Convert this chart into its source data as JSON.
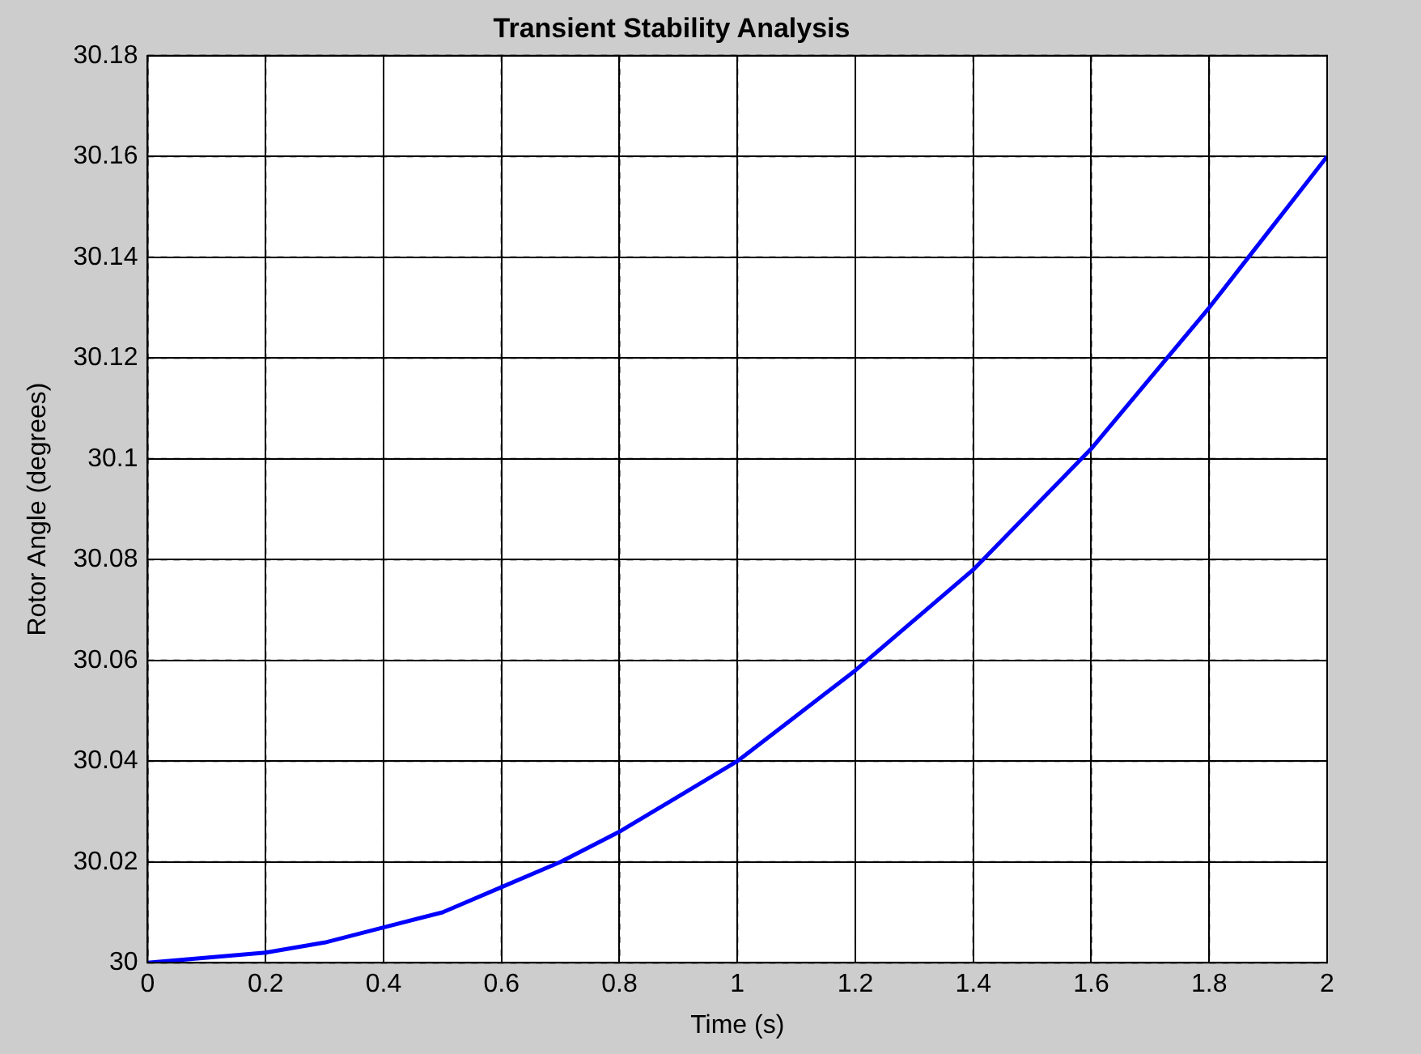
{
  "chart_data": {
    "type": "line",
    "title": "Transient Stability Analysis",
    "xlabel": "Time (s)",
    "ylabel": "Rotor Angle (degrees)",
    "x": [
      0,
      0.1,
      0.2,
      0.3,
      0.4,
      0.5,
      0.6,
      0.7,
      0.8,
      0.9,
      1.0,
      1.1,
      1.2,
      1.3,
      1.4,
      1.5,
      1.6,
      1.7,
      1.8,
      1.9,
      2.0
    ],
    "series": [
      {
        "color": "#0000ff",
        "values": [
          30.0,
          30.001,
          30.002,
          30.004,
          30.007,
          30.01,
          30.015,
          30.02,
          30.026,
          30.033,
          30.04,
          30.049,
          30.058,
          30.068,
          30.078,
          30.09,
          30.102,
          30.116,
          30.13,
          30.145,
          30.16
        ]
      }
    ],
    "xlim": [
      0,
      2
    ],
    "xticks": [
      0,
      0.2,
      0.4,
      0.6,
      0.8,
      1,
      1.2,
      1.4,
      1.6,
      1.8,
      2
    ],
    "ylim": [
      30,
      30.18
    ],
    "yticks": [
      30,
      30.02,
      30.04,
      30.06,
      30.08,
      30.1,
      30.12,
      30.14,
      30.16,
      30.18
    ],
    "grid": true,
    "legend": false,
    "marker": "none",
    "line_style": "solid"
  }
}
